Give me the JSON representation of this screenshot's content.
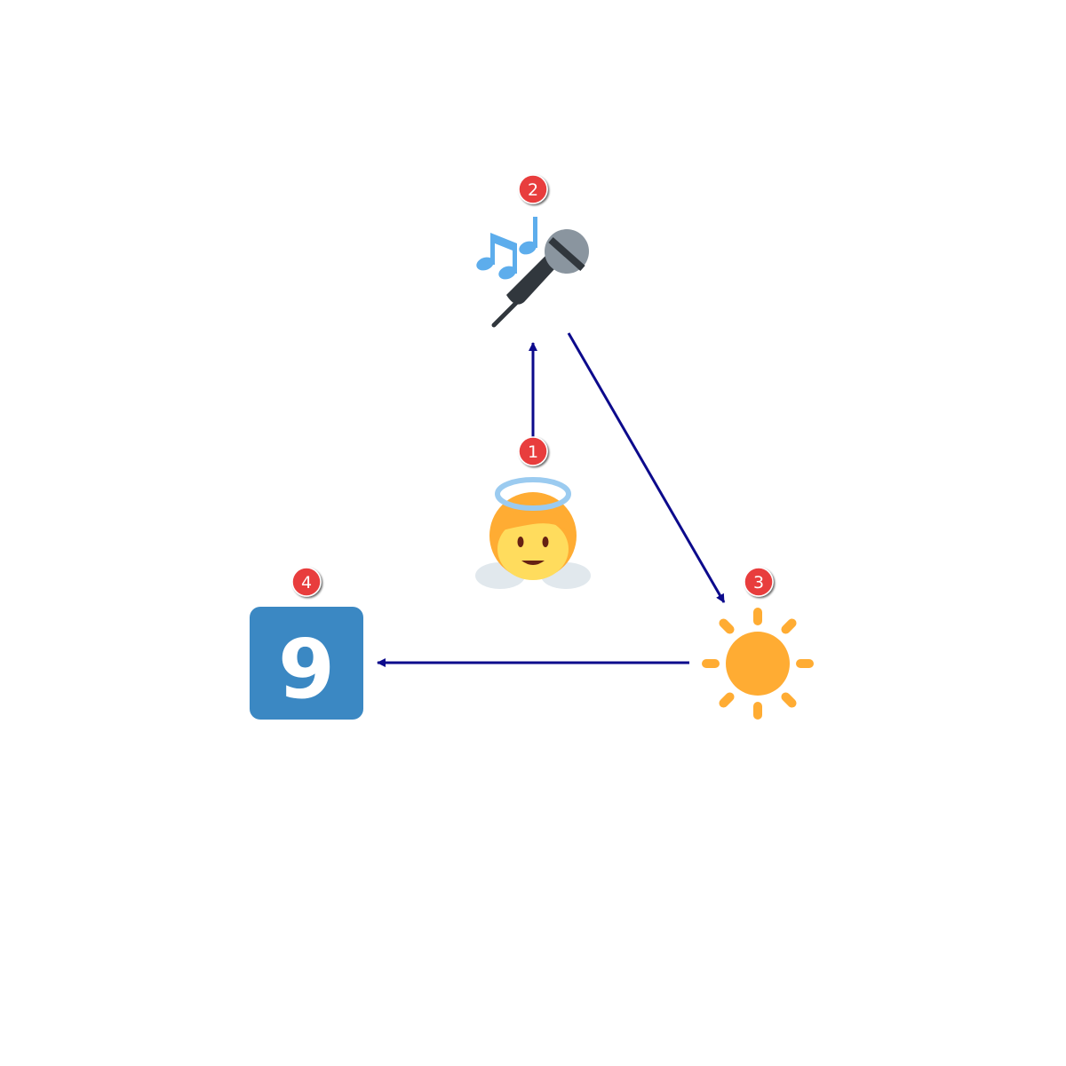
{
  "diagram": {
    "nodes": [
      {
        "id": "angel",
        "icon": "baby-angel-icon",
        "badge": "1"
      },
      {
        "id": "microphone",
        "icon": "microphone-music-notes-icon",
        "badge": "2"
      },
      {
        "id": "sun",
        "icon": "sun-icon",
        "badge": "3"
      },
      {
        "id": "keycap-nine",
        "icon": "keycap-nine-icon",
        "badge": "4",
        "symbol": "9"
      }
    ],
    "edges": [
      {
        "from": "angel",
        "to": "microphone"
      },
      {
        "from": "microphone",
        "to": "sun"
      },
      {
        "from": "sun",
        "to": "keycap-nine"
      }
    ],
    "colors": {
      "edge": "#0c0a8c",
      "badge_fill": "#e83c3c",
      "badge_text": "#ffffff",
      "sun": "#ffac33",
      "keycap": "#3b88c3",
      "mic_body": "#31373d",
      "mic_head": "#8a959f",
      "notes": "#5dadec",
      "halo": "#9bcbf0",
      "face": "#ffdc5d",
      "hair": "#ffac33",
      "wings": "#e1e8ed"
    }
  }
}
